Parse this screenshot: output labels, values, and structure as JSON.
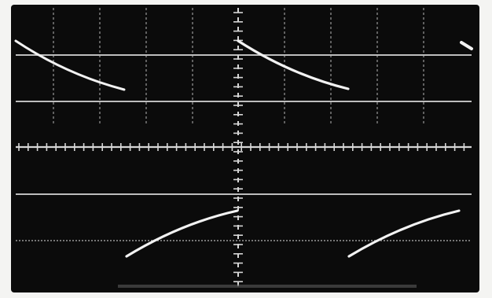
{
  "photo": {
    "subject": "oscilloscope-screen",
    "screen_color": "#0b0b0b",
    "grid_color": "#bdbdbd",
    "trace_color": "#f2f2f2",
    "border_color": "#f4f4f2"
  }
}
